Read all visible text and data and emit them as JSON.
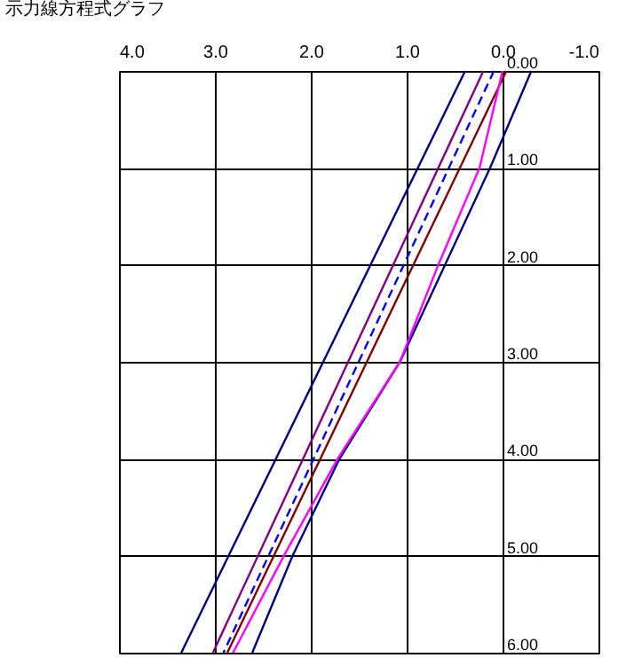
{
  "chart_data": {
    "type": "line",
    "title": "示力線方程式グラフ",
    "xlim": [
      4,
      -1
    ],
    "xticks": [
      {
        "value": 4,
        "label": "4.0"
      },
      {
        "value": 3,
        "label": "3.0"
      },
      {
        "value": 2,
        "label": "2.0"
      },
      {
        "value": 1,
        "label": "1.0"
      },
      {
        "value": 0,
        "label": "0.0"
      },
      {
        "value": -1,
        "label": "-1.0"
      }
    ],
    "ylim": [
      6,
      0
    ],
    "yticks": [
      {
        "value": 0,
        "label": "0.00"
      },
      {
        "value": 1,
        "label": "1.00"
      },
      {
        "value": 2,
        "label": "2.00"
      },
      {
        "value": 3,
        "label": "3.00"
      },
      {
        "value": 4,
        "label": "4.00"
      },
      {
        "value": 5,
        "label": "5.00"
      },
      {
        "value": 6,
        "label": "6.00"
      }
    ],
    "grid": true,
    "series": [
      {
        "color": "#000080",
        "x": [
          0.39,
          3.35
        ],
        "values": [
          0,
          6
        ]
      },
      {
        "color": "#800080",
        "x": [
          0.2,
          3.02
        ],
        "values": [
          0,
          6
        ]
      },
      {
        "color": "#0000ff",
        "line_style": "dashed",
        "x": [
          0.09,
          2.91
        ],
        "values": [
          0,
          6
        ]
      },
      {
        "color": "#800000",
        "x": [
          -0.04,
          2.87
        ],
        "values": [
          0,
          6
        ]
      },
      {
        "color": "#000080",
        "x": [
          -0.3,
          0.13,
          0.6,
          1.07,
          1.7,
          2.19,
          2.61
        ],
        "values": [
          0,
          1,
          2,
          3,
          4,
          5,
          6
        ]
      },
      {
        "color": "#ff00ff",
        "x": [
          0,
          0.24,
          0.67,
          1.07,
          1.72,
          2.28,
          2.81
        ],
        "values": [
          0,
          1,
          2,
          3,
          4,
          5,
          6
        ]
      }
    ]
  }
}
